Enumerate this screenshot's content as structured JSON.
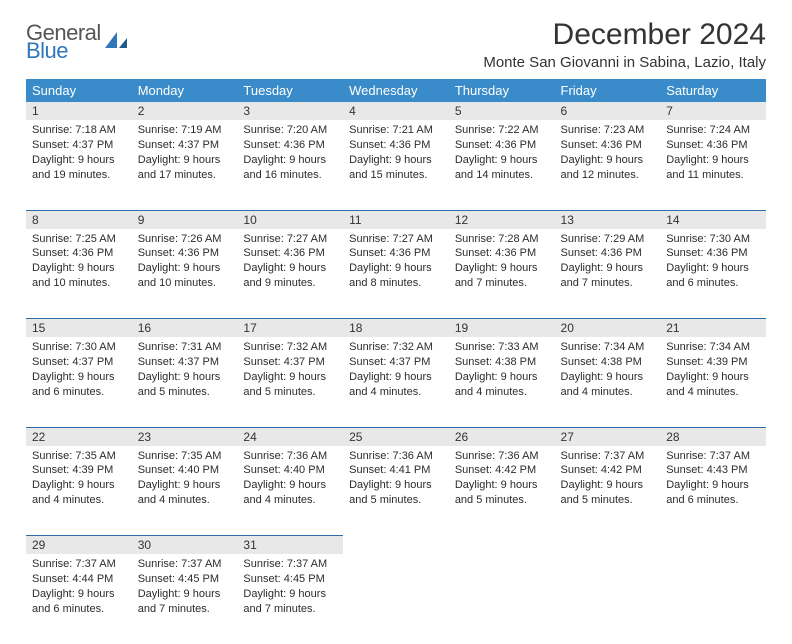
{
  "logo": {
    "general": "General",
    "blue": "Blue"
  },
  "title": "December 2024",
  "location": "Monte San Giovanni in Sabina, Lazio, Italy",
  "colors": {
    "header_bg": "#3a8bc9",
    "header_text": "#ffffff",
    "daynum_bg": "#e8e8e8",
    "week_divider": "#2f6ea8",
    "logo_gray": "#555555",
    "logo_blue": "#2f77bb",
    "body_text": "#2c2c2c",
    "page_bg": "#ffffff"
  },
  "typography": {
    "title_fontsize": 30,
    "location_fontsize": 15,
    "weekday_fontsize": 13,
    "daynum_fontsize": 12,
    "detail_fontsize": 11
  },
  "layout": {
    "columns": 7,
    "weeks": 5
  },
  "weekdays": [
    "Sunday",
    "Monday",
    "Tuesday",
    "Wednesday",
    "Thursday",
    "Friday",
    "Saturday"
  ],
  "weeks": [
    [
      {
        "n": "1",
        "sunrise": "Sunrise: 7:18 AM",
        "sunset": "Sunset: 4:37 PM",
        "day": "Daylight: 9 hours and 19 minutes."
      },
      {
        "n": "2",
        "sunrise": "Sunrise: 7:19 AM",
        "sunset": "Sunset: 4:37 PM",
        "day": "Daylight: 9 hours and 17 minutes."
      },
      {
        "n": "3",
        "sunrise": "Sunrise: 7:20 AM",
        "sunset": "Sunset: 4:36 PM",
        "day": "Daylight: 9 hours and 16 minutes."
      },
      {
        "n": "4",
        "sunrise": "Sunrise: 7:21 AM",
        "sunset": "Sunset: 4:36 PM",
        "day": "Daylight: 9 hours and 15 minutes."
      },
      {
        "n": "5",
        "sunrise": "Sunrise: 7:22 AM",
        "sunset": "Sunset: 4:36 PM",
        "day": "Daylight: 9 hours and 14 minutes."
      },
      {
        "n": "6",
        "sunrise": "Sunrise: 7:23 AM",
        "sunset": "Sunset: 4:36 PM",
        "day": "Daylight: 9 hours and 12 minutes."
      },
      {
        "n": "7",
        "sunrise": "Sunrise: 7:24 AM",
        "sunset": "Sunset: 4:36 PM",
        "day": "Daylight: 9 hours and 11 minutes."
      }
    ],
    [
      {
        "n": "8",
        "sunrise": "Sunrise: 7:25 AM",
        "sunset": "Sunset: 4:36 PM",
        "day": "Daylight: 9 hours and 10 minutes."
      },
      {
        "n": "9",
        "sunrise": "Sunrise: 7:26 AM",
        "sunset": "Sunset: 4:36 PM",
        "day": "Daylight: 9 hours and 10 minutes."
      },
      {
        "n": "10",
        "sunrise": "Sunrise: 7:27 AM",
        "sunset": "Sunset: 4:36 PM",
        "day": "Daylight: 9 hours and 9 minutes."
      },
      {
        "n": "11",
        "sunrise": "Sunrise: 7:27 AM",
        "sunset": "Sunset: 4:36 PM",
        "day": "Daylight: 9 hours and 8 minutes."
      },
      {
        "n": "12",
        "sunrise": "Sunrise: 7:28 AM",
        "sunset": "Sunset: 4:36 PM",
        "day": "Daylight: 9 hours and 7 minutes."
      },
      {
        "n": "13",
        "sunrise": "Sunrise: 7:29 AM",
        "sunset": "Sunset: 4:36 PM",
        "day": "Daylight: 9 hours and 7 minutes."
      },
      {
        "n": "14",
        "sunrise": "Sunrise: 7:30 AM",
        "sunset": "Sunset: 4:36 PM",
        "day": "Daylight: 9 hours and 6 minutes."
      }
    ],
    [
      {
        "n": "15",
        "sunrise": "Sunrise: 7:30 AM",
        "sunset": "Sunset: 4:37 PM",
        "day": "Daylight: 9 hours and 6 minutes."
      },
      {
        "n": "16",
        "sunrise": "Sunrise: 7:31 AM",
        "sunset": "Sunset: 4:37 PM",
        "day": "Daylight: 9 hours and 5 minutes."
      },
      {
        "n": "17",
        "sunrise": "Sunrise: 7:32 AM",
        "sunset": "Sunset: 4:37 PM",
        "day": "Daylight: 9 hours and 5 minutes."
      },
      {
        "n": "18",
        "sunrise": "Sunrise: 7:32 AM",
        "sunset": "Sunset: 4:37 PM",
        "day": "Daylight: 9 hours and 4 minutes."
      },
      {
        "n": "19",
        "sunrise": "Sunrise: 7:33 AM",
        "sunset": "Sunset: 4:38 PM",
        "day": "Daylight: 9 hours and 4 minutes."
      },
      {
        "n": "20",
        "sunrise": "Sunrise: 7:34 AM",
        "sunset": "Sunset: 4:38 PM",
        "day": "Daylight: 9 hours and 4 minutes."
      },
      {
        "n": "21",
        "sunrise": "Sunrise: 7:34 AM",
        "sunset": "Sunset: 4:39 PM",
        "day": "Daylight: 9 hours and 4 minutes."
      }
    ],
    [
      {
        "n": "22",
        "sunrise": "Sunrise: 7:35 AM",
        "sunset": "Sunset: 4:39 PM",
        "day": "Daylight: 9 hours and 4 minutes."
      },
      {
        "n": "23",
        "sunrise": "Sunrise: 7:35 AM",
        "sunset": "Sunset: 4:40 PM",
        "day": "Daylight: 9 hours and 4 minutes."
      },
      {
        "n": "24",
        "sunrise": "Sunrise: 7:36 AM",
        "sunset": "Sunset: 4:40 PM",
        "day": "Daylight: 9 hours and 4 minutes."
      },
      {
        "n": "25",
        "sunrise": "Sunrise: 7:36 AM",
        "sunset": "Sunset: 4:41 PM",
        "day": "Daylight: 9 hours and 5 minutes."
      },
      {
        "n": "26",
        "sunrise": "Sunrise: 7:36 AM",
        "sunset": "Sunset: 4:42 PM",
        "day": "Daylight: 9 hours and 5 minutes."
      },
      {
        "n": "27",
        "sunrise": "Sunrise: 7:37 AM",
        "sunset": "Sunset: 4:42 PM",
        "day": "Daylight: 9 hours and 5 minutes."
      },
      {
        "n": "28",
        "sunrise": "Sunrise: 7:37 AM",
        "sunset": "Sunset: 4:43 PM",
        "day": "Daylight: 9 hours and 6 minutes."
      }
    ],
    [
      {
        "n": "29",
        "sunrise": "Sunrise: 7:37 AM",
        "sunset": "Sunset: 4:44 PM",
        "day": "Daylight: 9 hours and 6 minutes."
      },
      {
        "n": "30",
        "sunrise": "Sunrise: 7:37 AM",
        "sunset": "Sunset: 4:45 PM",
        "day": "Daylight: 9 hours and 7 minutes."
      },
      {
        "n": "31",
        "sunrise": "Sunrise: 7:37 AM",
        "sunset": "Sunset: 4:45 PM",
        "day": "Daylight: 9 hours and 7 minutes."
      },
      null,
      null,
      null,
      null
    ]
  ]
}
